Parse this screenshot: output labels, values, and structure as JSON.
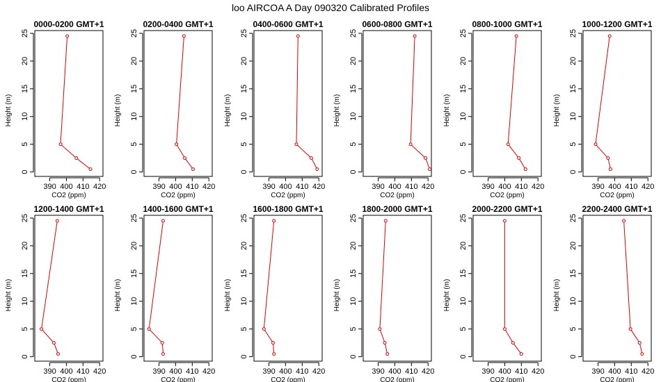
{
  "figure": {
    "title": "loo AIRCOA A  Day 090320  Calibrated Profiles"
  },
  "style": {
    "series_color": "#e00000",
    "axis_color": "#000000",
    "background": "#ffffff"
  },
  "chart_data": [
    {
      "type": "line",
      "title": "0000-0200 GMT+1",
      "xlabel": "CO2 (ppm)",
      "ylabel": "Height (m)",
      "xlim": [
        381,
        422
      ],
      "ylim": [
        -0.8,
        25.5
      ],
      "xticks": [
        390,
        400,
        410,
        420
      ],
      "yticks": [
        0,
        5,
        10,
        15,
        20,
        25
      ],
      "grid": false,
      "legend": "none",
      "points": [
        {
          "x": 414.5,
          "y": 0.5
        },
        {
          "x": 406,
          "y": 2.5
        },
        {
          "x": 396.5,
          "y": 5
        },
        {
          "x": 400.5,
          "y": 24.5
        }
      ]
    },
    {
      "type": "line",
      "title": "0200-0400 GMT+1",
      "xlabel": "CO2 (ppm)",
      "ylabel": "Height (m)",
      "xlim": [
        381,
        422
      ],
      "ylim": [
        -0.8,
        25.5
      ],
      "xticks": [
        390,
        400,
        410,
        420
      ],
      "yticks": [
        0,
        5,
        10,
        15,
        20,
        25
      ],
      "grid": false,
      "legend": "none",
      "points": [
        {
          "x": 410.5,
          "y": 0.5
        },
        {
          "x": 405.5,
          "y": 2.5
        },
        {
          "x": 400.5,
          "y": 5
        },
        {
          "x": 405,
          "y": 24.5
        }
      ]
    },
    {
      "type": "line",
      "title": "0400-0600 GMT+1",
      "xlabel": "CO2 (ppm)",
      "ylabel": "Height (m)",
      "xlim": [
        381,
        422
      ],
      "ylim": [
        -0.8,
        25.5
      ],
      "xticks": [
        390,
        400,
        410,
        420
      ],
      "yticks": [
        0,
        5,
        10,
        15,
        20,
        25
      ],
      "grid": false,
      "legend": "none",
      "points": [
        {
          "x": 419,
          "y": 0.5
        },
        {
          "x": 415.5,
          "y": 2.5
        },
        {
          "x": 406.5,
          "y": 5
        },
        {
          "x": 407.5,
          "y": 24.5
        }
      ]
    },
    {
      "type": "line",
      "title": "0600-0800 GMT+1",
      "xlabel": "CO2 (ppm)",
      "ylabel": "Height (m)",
      "xlim": [
        381,
        422
      ],
      "ylim": [
        -0.8,
        25.5
      ],
      "xticks": [
        390,
        400,
        410,
        420
      ],
      "yticks": [
        0,
        5,
        10,
        15,
        20,
        25
      ],
      "grid": false,
      "legend": "none",
      "points": [
        {
          "x": 421,
          "y": 0.5
        },
        {
          "x": 418.5,
          "y": 2.5
        },
        {
          "x": 409.5,
          "y": 5
        },
        {
          "x": 412,
          "y": 24.5
        }
      ]
    },
    {
      "type": "line",
      "title": "0800-1000 GMT+1",
      "xlabel": "CO2 (ppm)",
      "ylabel": "Height (m)",
      "xlim": [
        381,
        422
      ],
      "ylim": [
        -0.8,
        25.5
      ],
      "xticks": [
        390,
        400,
        410,
        420
      ],
      "yticks": [
        0,
        5,
        10,
        15,
        20,
        25
      ],
      "grid": false,
      "legend": "none",
      "points": [
        {
          "x": 412.5,
          "y": 0.5
        },
        {
          "x": 408.5,
          "y": 2.5
        },
        {
          "x": 402,
          "y": 5
        },
        {
          "x": 407,
          "y": 24.5
        }
      ]
    },
    {
      "type": "line",
      "title": "1000-1200 GMT+1",
      "xlabel": "CO2 (ppm)",
      "ylabel": "Height (m)",
      "xlim": [
        381,
        422
      ],
      "ylim": [
        -0.8,
        25.5
      ],
      "xticks": [
        390,
        400,
        410,
        420
      ],
      "yticks": [
        0,
        5,
        10,
        15,
        20,
        25
      ],
      "grid": false,
      "legend": "none",
      "points": [
        {
          "x": 397.5,
          "y": 0.5
        },
        {
          "x": 396,
          "y": 2.5
        },
        {
          "x": 388.5,
          "y": 5
        },
        {
          "x": 397,
          "y": 24.5
        }
      ]
    },
    {
      "type": "line",
      "title": "1200-1400 GMT+1",
      "xlabel": "CO2 (ppm)",
      "ylabel": "Height (m)",
      "xlim": [
        381,
        422
      ],
      "ylim": [
        -0.8,
        25.5
      ],
      "xticks": [
        390,
        400,
        410,
        420
      ],
      "yticks": [
        0,
        5,
        10,
        15,
        20,
        25
      ],
      "grid": false,
      "legend": "none",
      "points": [
        {
          "x": 395,
          "y": 0.5
        },
        {
          "x": 392.5,
          "y": 2.5
        },
        {
          "x": 385,
          "y": 5
        },
        {
          "x": 394.5,
          "y": 24.5
        }
      ]
    },
    {
      "type": "line",
      "title": "1400-1600 GMT+1",
      "xlabel": "CO2 (ppm)",
      "ylabel": "Height (m)",
      "xlim": [
        381,
        422
      ],
      "ylim": [
        -0.8,
        25.5
      ],
      "xticks": [
        390,
        400,
        410,
        420
      ],
      "yticks": [
        0,
        5,
        10,
        15,
        20,
        25
      ],
      "grid": false,
      "legend": "none",
      "points": [
        {
          "x": 392.5,
          "y": 0.5
        },
        {
          "x": 392,
          "y": 2.5
        },
        {
          "x": 384,
          "y": 5
        },
        {
          "x": 392.5,
          "y": 24.5
        }
      ]
    },
    {
      "type": "line",
      "title": "1600-1800 GMT+1",
      "xlabel": "CO2 (ppm)",
      "ylabel": "Height (m)",
      "xlim": [
        381,
        422
      ],
      "ylim": [
        -0.8,
        25.5
      ],
      "xticks": [
        390,
        400,
        410,
        420
      ],
      "yticks": [
        0,
        5,
        10,
        15,
        20,
        25
      ],
      "grid": false,
      "legend": "none",
      "points": [
        {
          "x": 393,
          "y": 0.5
        },
        {
          "x": 392.5,
          "y": 2.5
        },
        {
          "x": 387,
          "y": 5
        },
        {
          "x": 393,
          "y": 24.5
        }
      ]
    },
    {
      "type": "line",
      "title": "1800-2000 GMT+1",
      "xlabel": "CO2 (ppm)",
      "ylabel": "Height (m)",
      "xlim": [
        381,
        422
      ],
      "ylim": [
        -0.8,
        25.5
      ],
      "xticks": [
        390,
        400,
        410,
        420
      ],
      "yticks": [
        0,
        5,
        10,
        15,
        20,
        25
      ],
      "grid": false,
      "legend": "none",
      "points": [
        {
          "x": 395.5,
          "y": 0.5
        },
        {
          "x": 394,
          "y": 2.5
        },
        {
          "x": 391,
          "y": 5
        },
        {
          "x": 394.5,
          "y": 24.5
        }
      ]
    },
    {
      "type": "line",
      "title": "2000-2200 GMT+1",
      "xlabel": "CO2 (ppm)",
      "ylabel": "Height (m)",
      "xlim": [
        381,
        422
      ],
      "ylim": [
        -0.8,
        25.5
      ],
      "xticks": [
        390,
        400,
        410,
        420
      ],
      "yticks": [
        0,
        5,
        10,
        15,
        20,
        25
      ],
      "grid": false,
      "legend": "none",
      "points": [
        {
          "x": 410,
          "y": 0.5
        },
        {
          "x": 405,
          "y": 2.5
        },
        {
          "x": 400,
          "y": 5
        },
        {
          "x": 400,
          "y": 24.5
        }
      ]
    },
    {
      "type": "line",
      "title": "2200-2400 GMT+1",
      "xlabel": "CO2 (ppm)",
      "ylabel": "Height (m)",
      "xlim": [
        381,
        422
      ],
      "ylim": [
        -0.8,
        25.5
      ],
      "xticks": [
        390,
        400,
        410,
        420
      ],
      "yticks": [
        0,
        5,
        10,
        15,
        20,
        25
      ],
      "grid": false,
      "legend": "none",
      "points": [
        {
          "x": 416.5,
          "y": 0.5
        },
        {
          "x": 415,
          "y": 2.5
        },
        {
          "x": 409.5,
          "y": 5
        },
        {
          "x": 405.5,
          "y": 24.5
        }
      ]
    }
  ]
}
